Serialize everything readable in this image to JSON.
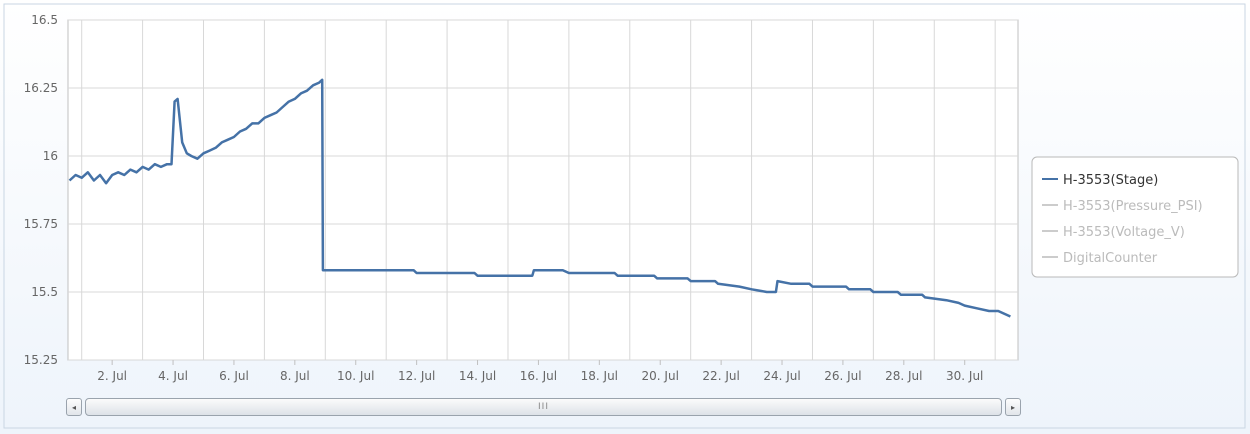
{
  "chart_data": {
    "type": "line",
    "title": "",
    "xlabel": "",
    "ylabel": "",
    "x_axis": {
      "type": "datetime",
      "range_days": [
        0.55,
        31.75
      ]
    },
    "ylim": [
      15.25,
      16.5
    ],
    "y_ticks": [
      "15.25",
      "15.5",
      "15.75",
      "16",
      "16.25",
      "16.5"
    ],
    "x_ticks": [
      {
        "day": 2,
        "label": "2. Jul"
      },
      {
        "day": 4,
        "label": "4. Jul"
      },
      {
        "day": 6,
        "label": "6. Jul"
      },
      {
        "day": 8,
        "label": "8. Jul"
      },
      {
        "day": 10,
        "label": "10. Jul"
      },
      {
        "day": 12,
        "label": "12. Jul"
      },
      {
        "day": 14,
        "label": "14. Jul"
      },
      {
        "day": 16,
        "label": "16. Jul"
      },
      {
        "day": 18,
        "label": "18. Jul"
      },
      {
        "day": 20,
        "label": "20. Jul"
      },
      {
        "day": 22,
        "label": "22. Jul"
      },
      {
        "day": 24,
        "label": "24. Jul"
      },
      {
        "day": 26,
        "label": "26. Jul"
      },
      {
        "day": 28,
        "label": "28. Jul"
      },
      {
        "day": 30,
        "label": "30. Jul"
      }
    ],
    "grid": true,
    "legend_position": "right",
    "series": [
      {
        "name": "H-3553(Stage)",
        "visible": true,
        "color": "#4572a7",
        "points": [
          [
            0.6,
            15.91
          ],
          [
            0.8,
            15.93
          ],
          [
            1.0,
            15.92
          ],
          [
            1.2,
            15.94
          ],
          [
            1.4,
            15.91
          ],
          [
            1.6,
            15.93
          ],
          [
            1.8,
            15.9
          ],
          [
            2.0,
            15.93
          ],
          [
            2.2,
            15.94
          ],
          [
            2.4,
            15.93
          ],
          [
            2.6,
            15.95
          ],
          [
            2.8,
            15.94
          ],
          [
            3.0,
            15.96
          ],
          [
            3.2,
            15.95
          ],
          [
            3.4,
            15.97
          ],
          [
            3.6,
            15.96
          ],
          [
            3.8,
            15.97
          ],
          [
            3.95,
            15.97
          ],
          [
            4.05,
            16.2
          ],
          [
            4.15,
            16.21
          ],
          [
            4.3,
            16.05
          ],
          [
            4.45,
            16.01
          ],
          [
            4.6,
            16.0
          ],
          [
            4.8,
            15.99
          ],
          [
            5.0,
            16.01
          ],
          [
            5.2,
            16.02
          ],
          [
            5.4,
            16.03
          ],
          [
            5.6,
            16.05
          ],
          [
            5.8,
            16.06
          ],
          [
            6.0,
            16.07
          ],
          [
            6.2,
            16.09
          ],
          [
            6.4,
            16.1
          ],
          [
            6.6,
            16.12
          ],
          [
            6.8,
            16.12
          ],
          [
            7.0,
            16.14
          ],
          [
            7.2,
            16.15
          ],
          [
            7.4,
            16.16
          ],
          [
            7.6,
            16.18
          ],
          [
            7.8,
            16.2
          ],
          [
            8.0,
            16.21
          ],
          [
            8.2,
            16.23
          ],
          [
            8.4,
            16.24
          ],
          [
            8.6,
            16.26
          ],
          [
            8.8,
            16.27
          ],
          [
            8.9,
            16.28
          ],
          [
            8.92,
            15.58
          ],
          [
            10.0,
            15.58
          ],
          [
            11.0,
            15.58
          ],
          [
            11.9,
            15.58
          ],
          [
            12.0,
            15.57
          ],
          [
            13.0,
            15.57
          ],
          [
            13.9,
            15.57
          ],
          [
            14.0,
            15.56
          ],
          [
            15.0,
            15.56
          ],
          [
            15.8,
            15.56
          ],
          [
            15.85,
            15.58
          ],
          [
            16.8,
            15.58
          ],
          [
            17.0,
            15.57
          ],
          [
            18.5,
            15.57
          ],
          [
            18.6,
            15.56
          ],
          [
            19.8,
            15.56
          ],
          [
            19.9,
            15.55
          ],
          [
            20.9,
            15.55
          ],
          [
            21.0,
            15.54
          ],
          [
            21.8,
            15.54
          ],
          [
            21.9,
            15.53
          ],
          [
            22.6,
            15.52
          ],
          [
            23.0,
            15.51
          ],
          [
            23.5,
            15.5
          ],
          [
            23.8,
            15.5
          ],
          [
            23.85,
            15.54
          ],
          [
            24.3,
            15.53
          ],
          [
            24.9,
            15.53
          ],
          [
            25.0,
            15.52
          ],
          [
            26.1,
            15.52
          ],
          [
            26.2,
            15.51
          ],
          [
            26.9,
            15.51
          ],
          [
            27.0,
            15.5
          ],
          [
            27.8,
            15.5
          ],
          [
            27.9,
            15.49
          ],
          [
            28.6,
            15.49
          ],
          [
            28.7,
            15.48
          ],
          [
            29.4,
            15.47
          ],
          [
            29.8,
            15.46
          ],
          [
            30.0,
            15.45
          ],
          [
            30.4,
            15.44
          ],
          [
            30.8,
            15.43
          ],
          [
            31.1,
            15.43
          ],
          [
            31.3,
            15.42
          ],
          [
            31.5,
            15.41
          ]
        ]
      },
      {
        "name": "H-3553(Pressure_PSI)",
        "visible": false,
        "color": "#cccccc",
        "points": []
      },
      {
        "name": "H-3553(Voltage_V)",
        "visible": false,
        "color": "#cccccc",
        "points": []
      },
      {
        "name": "DigitalCounter",
        "visible": false,
        "color": "#cccccc",
        "points": []
      }
    ]
  },
  "scrollbar": {
    "left_arrow": "◂",
    "right_arrow": "▸",
    "grip": "III"
  }
}
